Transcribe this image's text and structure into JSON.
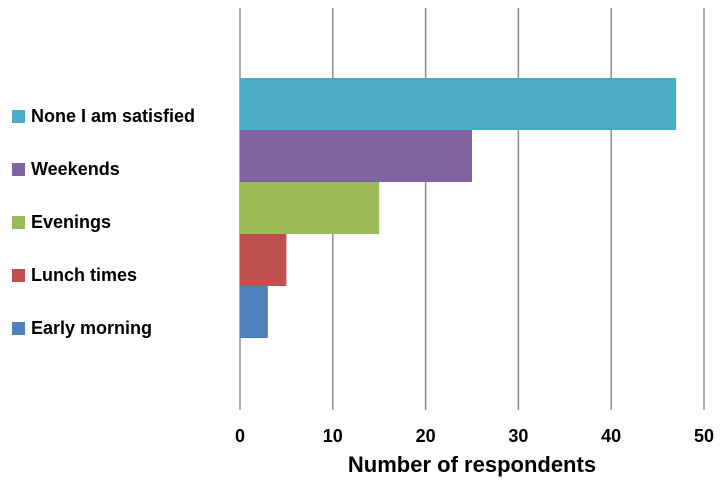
{
  "chart_data": {
    "type": "bar",
    "orientation": "horizontal",
    "categories": [
      "Early morning",
      "Lunch times",
      "Evenings",
      "Weekends",
      "None I am satisfied"
    ],
    "values": [
      3,
      5,
      15,
      25,
      47
    ],
    "colors": [
      "#4f81bd",
      "#c0504d",
      "#9bbb59",
      "#8064a2",
      "#4bacc6"
    ],
    "legend": [
      {
        "label": "None I am satisfied",
        "color": "#4bacc6"
      },
      {
        "label": "Weekends",
        "color": "#8064a2"
      },
      {
        "label": "Evenings",
        "color": "#9bbb59"
      },
      {
        "label": "Lunch times",
        "color": "#c0504d"
      },
      {
        "label": "Early morning",
        "color": "#4f81bd"
      }
    ],
    "legend_position": "left",
    "xlabel": "Number of respondents",
    "xlim": [
      0,
      50
    ],
    "xticks": [
      0,
      10,
      20,
      30,
      40,
      50
    ],
    "grid": true
  }
}
